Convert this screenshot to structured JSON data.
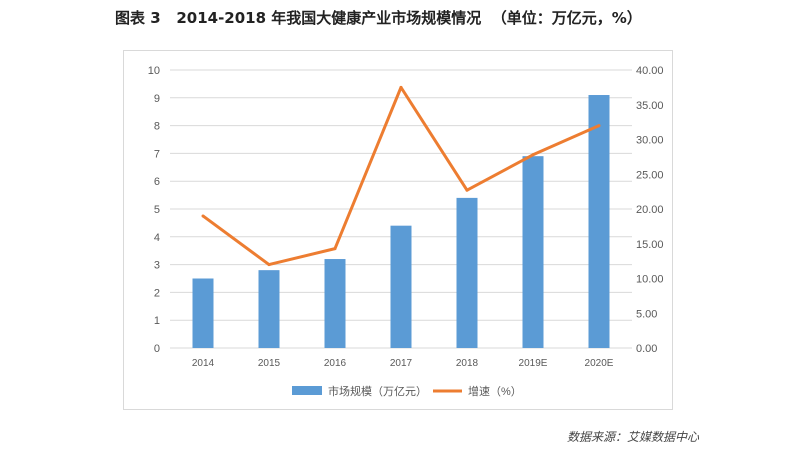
{
  "figure": {
    "title": "图表 3   2014-2018 年我国大健康产业市场规模情况  （单位：万亿元，%）",
    "source": "数据来源：艾媒数据中心"
  },
  "colors": {
    "bar": "#5b9bd5",
    "line": "#ed7d31",
    "grid": "#d9d9d9",
    "tick": "#595959"
  },
  "chart_data": {
    "type": "bar",
    "categories": [
      "2014",
      "2015",
      "2016",
      "2017",
      "2018",
      "2019E",
      "2020E"
    ],
    "series": [
      {
        "name": "市场规模（万亿元）",
        "type": "bar",
        "axis": "left",
        "values": [
          2.5,
          2.8,
          3.2,
          4.4,
          5.4,
          6.9,
          9.1
        ]
      },
      {
        "name": "增速（%）",
        "type": "line",
        "axis": "right",
        "values": [
          19.0,
          12.0,
          14.3,
          37.5,
          22.7,
          27.8,
          32.0
        ]
      }
    ],
    "y_left": {
      "min": 0,
      "max": 10,
      "ticks": [
        "0",
        "1",
        "2",
        "3",
        "4",
        "5",
        "6",
        "7",
        "8",
        "9",
        "10"
      ]
    },
    "y_right": {
      "min": 0,
      "max": 40,
      "ticks": [
        "0.00",
        "5.00",
        "10.00",
        "15.00",
        "20.00",
        "25.00",
        "30.00",
        "35.00",
        "40.00"
      ]
    },
    "grid": true,
    "legend_position": "bottom"
  }
}
